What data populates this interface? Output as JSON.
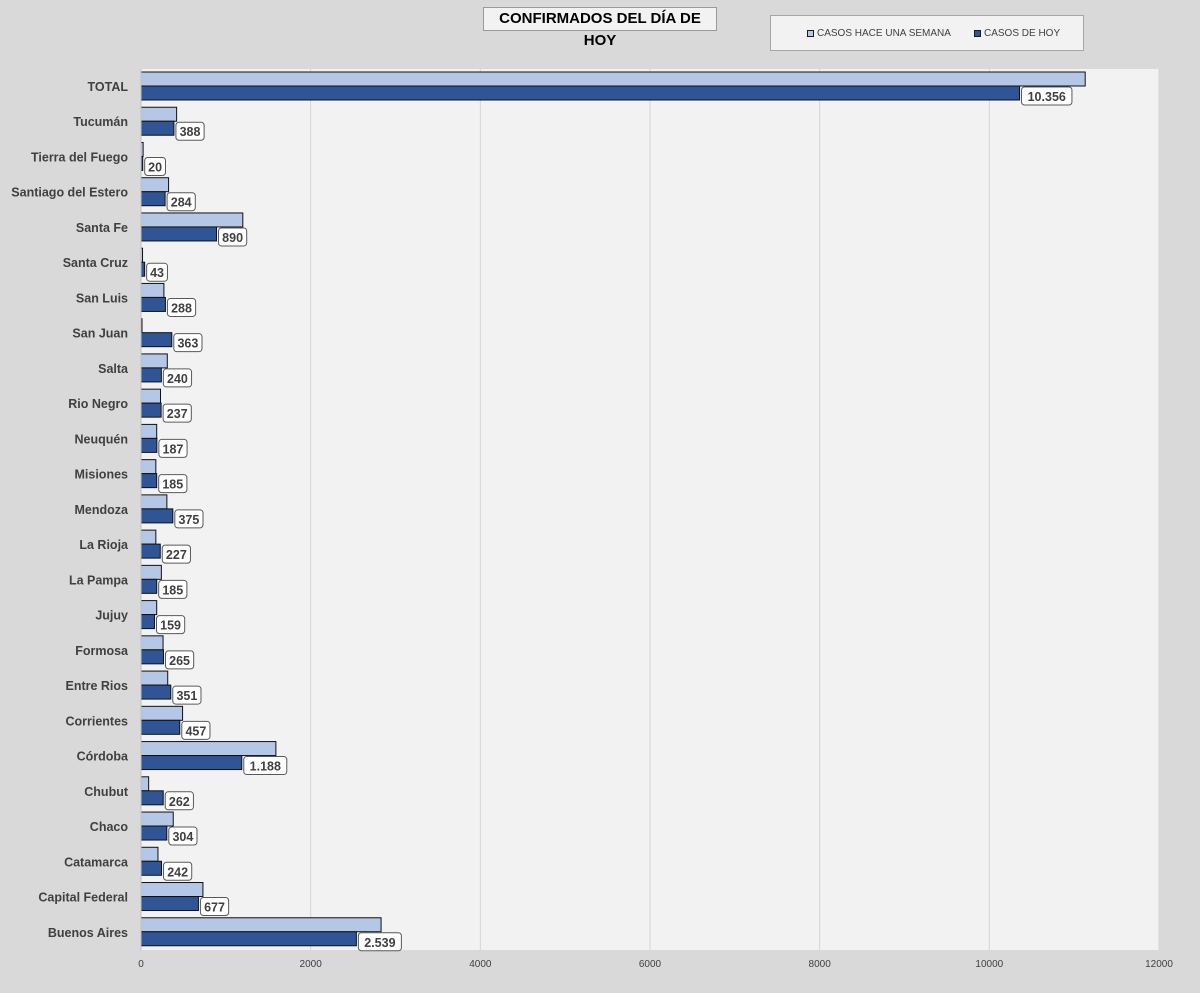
{
  "chart_data": {
    "type": "bar",
    "orientation": "horizontal",
    "title": "CONFIRMADOS DEL DÍA DE HOY",
    "xlabel": "",
    "ylabel": "",
    "xlim": [
      0,
      12000
    ],
    "x_ticks": [
      "0",
      "2000",
      "4000",
      "6000",
      "8000",
      "10000",
      "12000"
    ],
    "grid": "vertical",
    "legend_position": "top-right",
    "categories": [
      "TOTAL",
      "Tucumán",
      "Tierra del Fuego",
      "Santiago del Estero",
      "Santa Fe",
      "Santa Cruz",
      "San Luis",
      "San Juan",
      "Salta",
      "Rio Negro",
      "Neuquén",
      "Misiones",
      "Mendoza",
      "La Rioja",
      "La Pampa",
      "Jujuy",
      "Formosa",
      "Entre Rios",
      "Corrientes",
      "Córdoba",
      "Chubut",
      "Chaco",
      "Catamarca",
      "Capital Federal",
      "Buenos Aires"
    ],
    "series": [
      {
        "name": "CASOS HACE UNA SEMANA",
        "color": "#b4c7e7",
        "values": [
          11130,
          420,
          25,
          325,
          1200,
          18,
          270,
          10,
          310,
          230,
          185,
          175,
          305,
          175,
          240,
          185,
          260,
          315,
          490,
          1590,
          90,
          380,
          200,
          730,
          2830
        ]
      },
      {
        "name": "CASOS DE HOY",
        "color": "#2f5597",
        "values": [
          10356,
          388,
          20,
          284,
          890,
          43,
          288,
          363,
          240,
          237,
          187,
          185,
          375,
          227,
          185,
          159,
          265,
          351,
          457,
          1188,
          262,
          304,
          242,
          677,
          2539
        ],
        "data_labels": [
          "10.356",
          "388",
          "20",
          "284",
          "890",
          "43",
          "288",
          "363",
          "240",
          "237",
          "187",
          "185",
          "375",
          "227",
          "185",
          "159",
          "265",
          "351",
          "457",
          "1.188",
          "262",
          "304",
          "242",
          "677",
          "2.539"
        ]
      }
    ]
  }
}
